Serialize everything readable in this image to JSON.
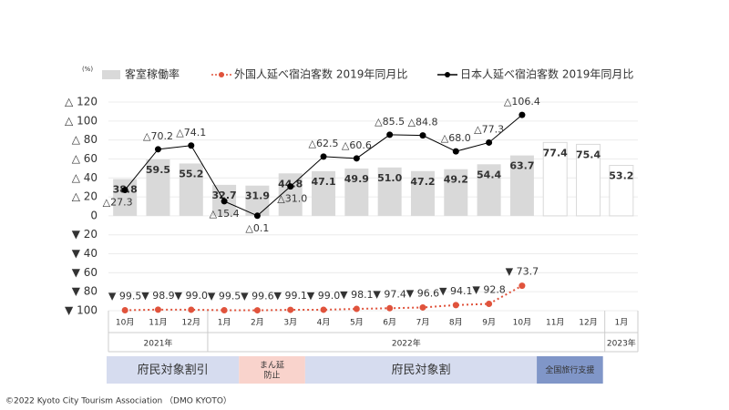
{
  "chart_data": {
    "type": "bar_line",
    "unit_label": "(%)",
    "categories": [
      "10月",
      "11月",
      "12月",
      "1月",
      "2月",
      "3月",
      "4月",
      "5月",
      "6月",
      "7月",
      "8月",
      "9月",
      "10月",
      "11月",
      "12月",
      "1月"
    ],
    "year_groups": [
      {
        "label": "2021年",
        "span": 3
      },
      {
        "label": "2022年",
        "span": 12
      },
      {
        "label": "2023年",
        "span": 1
      }
    ],
    "period_bands": [
      {
        "label": "府民対象割引",
        "span": 4,
        "color": "#d6dcef",
        "text_color": "#333333"
      },
      {
        "label": "まん延\n防止",
        "span": 2,
        "color": "#f9d3cc",
        "text_color": "#333333"
      },
      {
        "label": "府民対象割",
        "span": 7,
        "color": "#d6dcef",
        "text_color": "#333333"
      },
      {
        "label": "全国旅行支援",
        "span": 2,
        "color": "#8096c8",
        "text_color": "#ffffff"
      }
    ],
    "series": [
      {
        "name": "客室稼働率",
        "kind": "bar",
        "color": "#d9d9d9",
        "colors": [
          "#d9d9d9",
          "#d9d9d9",
          "#d9d9d9",
          "#d9d9d9",
          "#d9d9d9",
          "#d9d9d9",
          "#d9d9d9",
          "#d9d9d9",
          "#d9d9d9",
          "#d9d9d9",
          "#d9d9d9",
          "#d9d9d9",
          "#d9d9d9",
          "#ffffff",
          "#ffffff",
          "#ffffff"
        ],
        "values": [
          38.8,
          59.5,
          55.2,
          32.7,
          31.9,
          44.8,
          47.1,
          49.9,
          51.0,
          47.2,
          49.2,
          54.4,
          63.7,
          77.4,
          75.4,
          53.2
        ],
        "value_labels": [
          "38.8",
          "59.5",
          "55.2",
          "32.7",
          "31.9",
          "44.8",
          "47.1",
          "49.9",
          "51.0",
          "47.2",
          "49.2",
          "54.4",
          "63.7",
          "77.4",
          "75.4",
          "53.2"
        ]
      },
      {
        "name": "外国人延べ宿泊客数 2019年同月比",
        "kind": "line",
        "dotted": true,
        "color": "#e0533c",
        "values": [
          -99.5,
          -98.9,
          -99.0,
          -99.5,
          -99.6,
          -99.1,
          -99.0,
          -98.1,
          -97.4,
          -96.6,
          -94.1,
          -92.8,
          -73.7,
          null,
          null,
          null
        ],
        "value_labels": [
          "▼ 99.5",
          "▼ 98.9",
          "▼ 99.0",
          "▼ 99.5",
          "▼ 99.6",
          "▼ 99.1",
          "▼ 99.0",
          "▼ 98.1",
          "▼ 97.4",
          "▼ 96.6",
          "▼ 94.1",
          "▼ 92.8",
          "▼ 73.7",
          null,
          null,
          null
        ]
      },
      {
        "name": "日本人延べ宿泊客数 2019年同月比",
        "kind": "line",
        "dotted": false,
        "color": "#000000",
        "values": [
          27.3,
          70.2,
          74.1,
          15.4,
          0.1,
          31.0,
          62.5,
          60.6,
          85.5,
          84.8,
          68.0,
          77.3,
          106.4,
          null,
          null,
          null
        ],
        "value_labels": [
          "△27.3",
          "△70.2",
          "△74.1",
          "△15.4",
          "△0.1",
          "△31.0",
          "△62.5",
          "△60.6",
          "△85.5",
          "△84.8",
          "△68.0",
          "△77.3",
          "△106.4",
          null,
          null,
          null
        ]
      }
    ],
    "ylim": [
      -100,
      120
    ],
    "yticks": [
      {
        "value": 120,
        "label": "△ 120"
      },
      {
        "value": 100,
        "label": "△ 100"
      },
      {
        "value": 80,
        "label": "△ 80"
      },
      {
        "value": 60,
        "label": "△ 60"
      },
      {
        "value": 40,
        "label": "△ 40"
      },
      {
        "value": 20,
        "label": "△ 20"
      },
      0,
      {
        "value": -20,
        "label": "▼ 20"
      },
      {
        "value": -40,
        "label": "▼ 40"
      },
      {
        "value": -60,
        "label": "▼ 60"
      },
      {
        "value": -80,
        "label": "▼ 80"
      },
      {
        "value": -100,
        "label": "▼ 100"
      }
    ],
    "grid": true,
    "footer": "©2022 Kyoto City Tourism Association （DMO KYOTO）"
  }
}
